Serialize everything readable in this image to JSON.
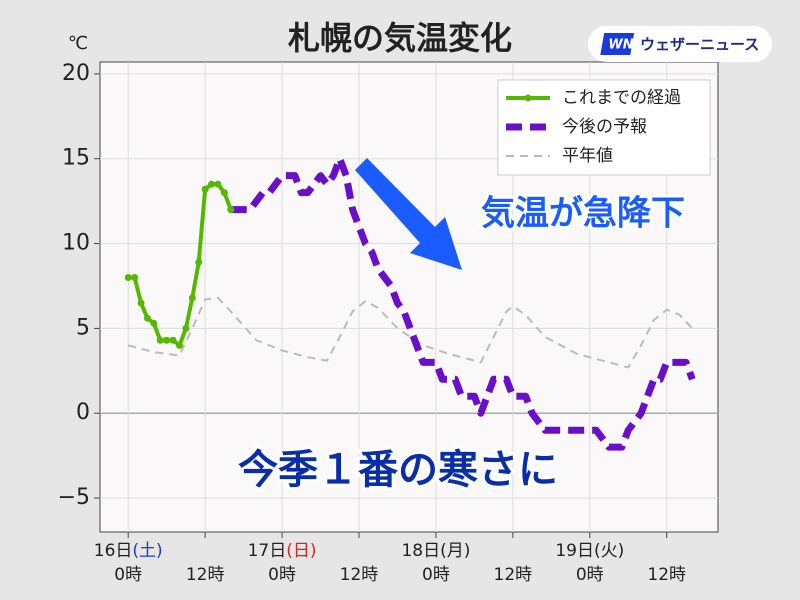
{
  "chart_data": {
    "type": "line",
    "title": "札幌の気温変化",
    "unit": "℃",
    "logo": {
      "mark": "WN",
      "text": "ウェザーニュース"
    },
    "xlim": [
      -4.4,
      92
    ],
    "ylim": [
      -7,
      20.7
    ],
    "yticks": [
      {
        "value": -5,
        "label": "−5"
      },
      0,
      5,
      10,
      15,
      20
    ],
    "xticks": [
      {
        "value": 0,
        "label": "0時"
      },
      {
        "value": 12,
        "label": "12時"
      },
      {
        "value": 24,
        "label": "0時"
      },
      {
        "value": 36,
        "label": "12時"
      },
      {
        "value": 48,
        "label": "0時"
      },
      {
        "value": 60,
        "label": "12時"
      },
      {
        "value": 72,
        "label": "0時"
      },
      {
        "value": 84,
        "label": "12時"
      }
    ],
    "days": [
      {
        "x": 0,
        "day": "16日",
        "weekday": "(土)",
        "weekday_color": "#1a3bd8"
      },
      {
        "x": 24,
        "day": "17日",
        "weekday": "(日)",
        "weekday_color": "#e02020"
      },
      {
        "x": 48,
        "day": "18日",
        "weekday": "(月)",
        "weekday_color": "#222222"
      },
      {
        "x": 72,
        "day": "19日",
        "weekday": "(火)",
        "weekday_color": "#222222"
      }
    ],
    "grid": true,
    "zero_line": true,
    "legend": "upper right",
    "series": [
      {
        "name": "これまでの経過",
        "color": "#55b800",
        "linestyle": "solid",
        "marker": "o",
        "x": [
          0,
          1,
          2,
          3,
          4,
          5,
          6,
          7,
          8,
          9,
          10,
          11,
          12,
          13,
          14,
          15,
          16
        ],
        "values": [
          8,
          8,
          6.5,
          5.6,
          5.3,
          4.3,
          4.3,
          4.3,
          4,
          5,
          6.8,
          8.9,
          13.2,
          13.5,
          13.5,
          13,
          12
        ]
      },
      {
        "name": "今後の予報",
        "color": "#6a0fc8",
        "linestyle": "dashed",
        "marker": "none",
        "x": [
          16,
          17,
          18,
          19,
          20,
          21,
          22,
          23,
          24,
          25,
          26,
          27,
          28,
          29,
          30,
          31,
          32,
          33,
          34,
          35,
          36,
          37,
          38,
          39,
          40,
          41,
          42,
          43,
          44,
          45,
          46,
          47,
          48,
          49,
          50,
          51,
          52,
          53,
          54,
          55,
          56,
          57,
          58,
          59,
          60,
          61,
          62,
          63,
          64,
          65,
          66,
          67,
          68,
          69,
          70,
          71,
          72,
          73,
          74,
          75,
          76,
          77,
          78,
          79,
          80,
          81,
          82,
          83,
          84,
          85,
          86,
          87,
          88
        ],
        "values": [
          12,
          12,
          12,
          12,
          12.5,
          13,
          13,
          13.5,
          14,
          14,
          14,
          13,
          13,
          13.5,
          14,
          13.5,
          14,
          15,
          14,
          12,
          11,
          10,
          9.5,
          8.5,
          8,
          7.5,
          6.5,
          6,
          5,
          4,
          3,
          3,
          3,
          2,
          2,
          2,
          1,
          1,
          1,
          0,
          1,
          2,
          2,
          2,
          1,
          1,
          1,
          0,
          -0.5,
          -1,
          -1,
          -1,
          -1,
          -1,
          -1,
          -1,
          -1,
          -1,
          -1.5,
          -2,
          -2,
          -2,
          -1,
          -0.5,
          0,
          1,
          2,
          2,
          3,
          3,
          3,
          3,
          2
        ]
      },
      {
        "name": "平年値",
        "color": "#bbbbbb",
        "linestyle": "dotted",
        "marker": "none",
        "x": [
          0,
          4,
          8,
          10,
          12,
          14,
          16,
          20,
          24,
          28,
          31,
          33,
          35,
          37,
          39,
          42,
          46,
          50,
          55,
          57,
          59,
          60,
          62,
          65,
          70,
          75,
          78,
          80,
          82,
          84,
          86,
          88
        ],
        "values": [
          4,
          3.6,
          3.4,
          5,
          6.7,
          6.8,
          6,
          4.3,
          3.7,
          3.3,
          3.1,
          4.5,
          6,
          6.6,
          6.2,
          5,
          4,
          3.5,
          3,
          4.5,
          6,
          6.3,
          5.8,
          4.5,
          3.5,
          3,
          2.7,
          4,
          5.5,
          6.1,
          5.8,
          5
        ]
      }
    ],
    "annotations": [
      {
        "text": "気温が急降下",
        "color": "#1a5cff"
      },
      {
        "text": "今季１番の寒さに",
        "color": "#0a2ea8"
      }
    ]
  }
}
